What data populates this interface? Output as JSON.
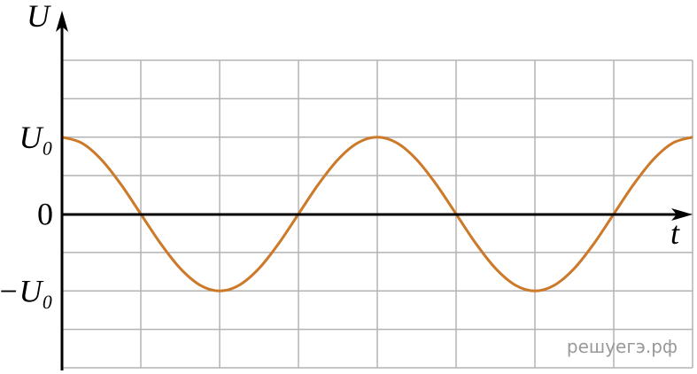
{
  "chart_data": {
    "type": "line",
    "y_label": "U",
    "x_label": "t",
    "x": [
      0,
      0.25,
      0.5,
      0.75,
      1,
      1.25,
      1.5,
      1.75,
      2,
      2.25,
      2.5,
      2.75,
      3,
      3.25,
      3.5,
      3.75,
      4,
      4.25,
      4.5,
      4.75,
      5,
      5.25,
      5.5,
      5.75,
      6,
      6.25,
      6.5,
      6.75,
      7,
      7.25,
      7.5,
      7.75,
      8
    ],
    "values": [
      2,
      1.848,
      1.414,
      0.765,
      0,
      -0.765,
      -1.414,
      -1.848,
      -2,
      -1.848,
      -1.414,
      -0.765,
      0,
      0.765,
      1.414,
      1.848,
      2,
      1.848,
      1.414,
      0.765,
      0,
      -0.765,
      -1.414,
      -1.848,
      -2,
      -1.848,
      -1.414,
      -0.765,
      0,
      0.765,
      1.414,
      1.848,
      2
    ],
    "color": "#cc7a2a",
    "xlim": [
      0,
      8
    ],
    "ylim": [
      -4,
      4
    ],
    "yticks": [
      {
        "value": 2,
        "label": "U₀"
      },
      0,
      {
        "value": -2,
        "label": "−U₀"
      }
    ],
    "grid": {
      "x": [
        0,
        1,
        2,
        3,
        4,
        5,
        6,
        7,
        8
      ],
      "y": [
        -4,
        -3,
        -2,
        -1,
        0,
        1,
        2,
        3,
        4
      ]
    },
    "watermark": "решуегэ.рф"
  }
}
